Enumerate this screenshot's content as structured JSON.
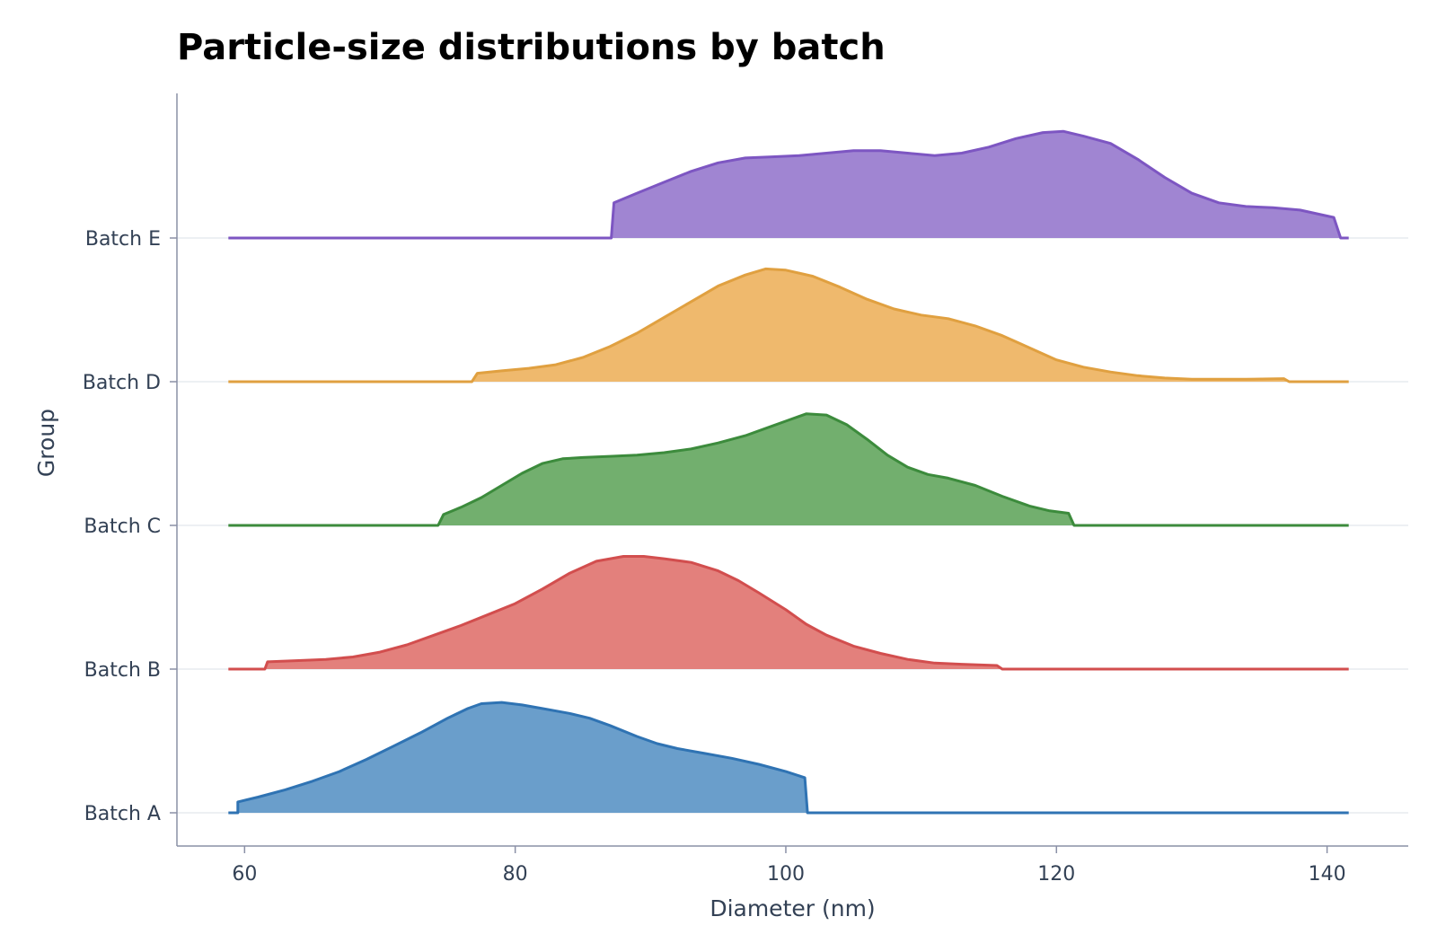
{
  "chart_data": {
    "type": "area",
    "title": "Particle-size distributions by batch",
    "xlabel": "Diameter (nm)",
    "ylabel": "Group",
    "xlim": [
      55,
      146
    ],
    "x_ticks": [
      "60",
      "80",
      "100",
      "120",
      "140"
    ],
    "x_tick_values": [
      60,
      80,
      100,
      120,
      140
    ],
    "categories": [
      "Batch A",
      "Batch B",
      "Batch C",
      "Batch D",
      "Batch E"
    ],
    "grid": "horizontal baselines only",
    "legend": "none",
    "series": [
      {
        "name": "Batch A",
        "color": "#2f73b3",
        "fill": "#6a9ecb",
        "range": [
          58.8,
          141.6
        ],
        "support": [
          59.5,
          101.6
        ],
        "points": [
          [
            59.5,
            0.09
          ],
          [
            61,
            0.13
          ],
          [
            63,
            0.19
          ],
          [
            65,
            0.26
          ],
          [
            67,
            0.34
          ],
          [
            69,
            0.44
          ],
          [
            71,
            0.55
          ],
          [
            73,
            0.66
          ],
          [
            75,
            0.78
          ],
          [
            76.5,
            0.86
          ],
          [
            77.5,
            0.9
          ],
          [
            79,
            0.91
          ],
          [
            80.5,
            0.89
          ],
          [
            82,
            0.86
          ],
          [
            84,
            0.82
          ],
          [
            85.5,
            0.78
          ],
          [
            87,
            0.72
          ],
          [
            89,
            0.63
          ],
          [
            90.5,
            0.57
          ],
          [
            92,
            0.53
          ],
          [
            94,
            0.49
          ],
          [
            96,
            0.45
          ],
          [
            98,
            0.4
          ],
          [
            100,
            0.34
          ],
          [
            101.4,
            0.29
          ]
        ]
      },
      {
        "name": "Batch B",
        "color": "#d24e4e",
        "fill": "#e3807c",
        "range": [
          58.8,
          141.6
        ],
        "support": [
          61.5,
          116
        ],
        "points": [
          [
            61.7,
            0.06
          ],
          [
            64,
            0.07
          ],
          [
            66,
            0.08
          ],
          [
            68,
            0.1
          ],
          [
            70,
            0.14
          ],
          [
            72,
            0.2
          ],
          [
            74,
            0.28
          ],
          [
            76,
            0.36
          ],
          [
            78,
            0.45
          ],
          [
            80,
            0.54
          ],
          [
            82,
            0.66
          ],
          [
            84,
            0.79
          ],
          [
            86,
            0.89
          ],
          [
            88,
            0.93
          ],
          [
            89.5,
            0.93
          ],
          [
            91,
            0.91
          ],
          [
            93,
            0.88
          ],
          [
            95,
            0.81
          ],
          [
            96.5,
            0.73
          ],
          [
            98,
            0.63
          ],
          [
            100,
            0.49
          ],
          [
            101.5,
            0.37
          ],
          [
            103,
            0.28
          ],
          [
            105,
            0.19
          ],
          [
            107,
            0.13
          ],
          [
            109,
            0.08
          ],
          [
            111,
            0.05
          ],
          [
            113,
            0.04
          ],
          [
            115.6,
            0.03
          ]
        ]
      },
      {
        "name": "Batch C",
        "color": "#3c8b3c",
        "fill": "#72af6e",
        "range": [
          58.8,
          141.6
        ],
        "support": [
          74.3,
          121.3
        ],
        "points": [
          [
            74.7,
            0.09
          ],
          [
            76,
            0.15
          ],
          [
            77.5,
            0.23
          ],
          [
            79,
            0.33
          ],
          [
            80.5,
            0.43
          ],
          [
            82,
            0.51
          ],
          [
            83.5,
            0.55
          ],
          [
            85,
            0.56
          ],
          [
            87,
            0.57
          ],
          [
            89,
            0.58
          ],
          [
            91,
            0.6
          ],
          [
            93,
            0.63
          ],
          [
            95,
            0.68
          ],
          [
            97,
            0.74
          ],
          [
            99,
            0.82
          ],
          [
            100,
            0.86
          ],
          [
            101.5,
            0.92
          ],
          [
            103,
            0.91
          ],
          [
            104.5,
            0.83
          ],
          [
            106,
            0.71
          ],
          [
            107.5,
            0.58
          ],
          [
            109,
            0.48
          ],
          [
            110.5,
            0.42
          ],
          [
            112,
            0.39
          ],
          [
            114,
            0.33
          ],
          [
            116,
            0.24
          ],
          [
            118,
            0.16
          ],
          [
            119.5,
            0.12
          ],
          [
            120.9,
            0.1
          ]
        ]
      },
      {
        "name": "Batch D",
        "color": "#e0a040",
        "fill": "#efb96d",
        "range": [
          58.8,
          141.6
        ],
        "support": [
          76.8,
          137.2
        ],
        "points": [
          [
            77.2,
            0.07
          ],
          [
            79,
            0.09
          ],
          [
            81,
            0.11
          ],
          [
            83,
            0.14
          ],
          [
            85,
            0.2
          ],
          [
            87,
            0.29
          ],
          [
            89,
            0.4
          ],
          [
            91,
            0.53
          ],
          [
            93,
            0.66
          ],
          [
            95,
            0.79
          ],
          [
            97,
            0.88
          ],
          [
            98.5,
            0.93
          ],
          [
            100,
            0.92
          ],
          [
            102,
            0.87
          ],
          [
            104,
            0.78
          ],
          [
            106,
            0.68
          ],
          [
            108,
            0.6
          ],
          [
            110,
            0.55
          ],
          [
            112,
            0.52
          ],
          [
            114,
            0.46
          ],
          [
            116,
            0.38
          ],
          [
            118,
            0.28
          ],
          [
            120,
            0.18
          ],
          [
            122,
            0.12
          ],
          [
            124,
            0.08
          ],
          [
            126,
            0.05
          ],
          [
            128,
            0.03
          ],
          [
            130,
            0.02
          ],
          [
            132,
            0.02
          ],
          [
            134,
            0.02
          ],
          [
            136.8,
            0.025
          ]
        ]
      },
      {
        "name": "Batch E",
        "color": "#7d56c2",
        "fill": "#a085d2",
        "range": [
          58.8,
          141.6
        ],
        "support": [
          87.1,
          141
        ],
        "points": [
          [
            87.3,
            0.29
          ],
          [
            89,
            0.37
          ],
          [
            91,
            0.46
          ],
          [
            93,
            0.55
          ],
          [
            95,
            0.62
          ],
          [
            97,
            0.66
          ],
          [
            99,
            0.67
          ],
          [
            101,
            0.68
          ],
          [
            103,
            0.7
          ],
          [
            105,
            0.72
          ],
          [
            107,
            0.72
          ],
          [
            109,
            0.7
          ],
          [
            111,
            0.68
          ],
          [
            113,
            0.7
          ],
          [
            115,
            0.75
          ],
          [
            117,
            0.82
          ],
          [
            119,
            0.87
          ],
          [
            120.5,
            0.88
          ],
          [
            122,
            0.84
          ],
          [
            124,
            0.78
          ],
          [
            126,
            0.65
          ],
          [
            128,
            0.5
          ],
          [
            130,
            0.37
          ],
          [
            132,
            0.29
          ],
          [
            134,
            0.26
          ],
          [
            136,
            0.25
          ],
          [
            138,
            0.23
          ],
          [
            140.5,
            0.17
          ]
        ]
      }
    ]
  }
}
